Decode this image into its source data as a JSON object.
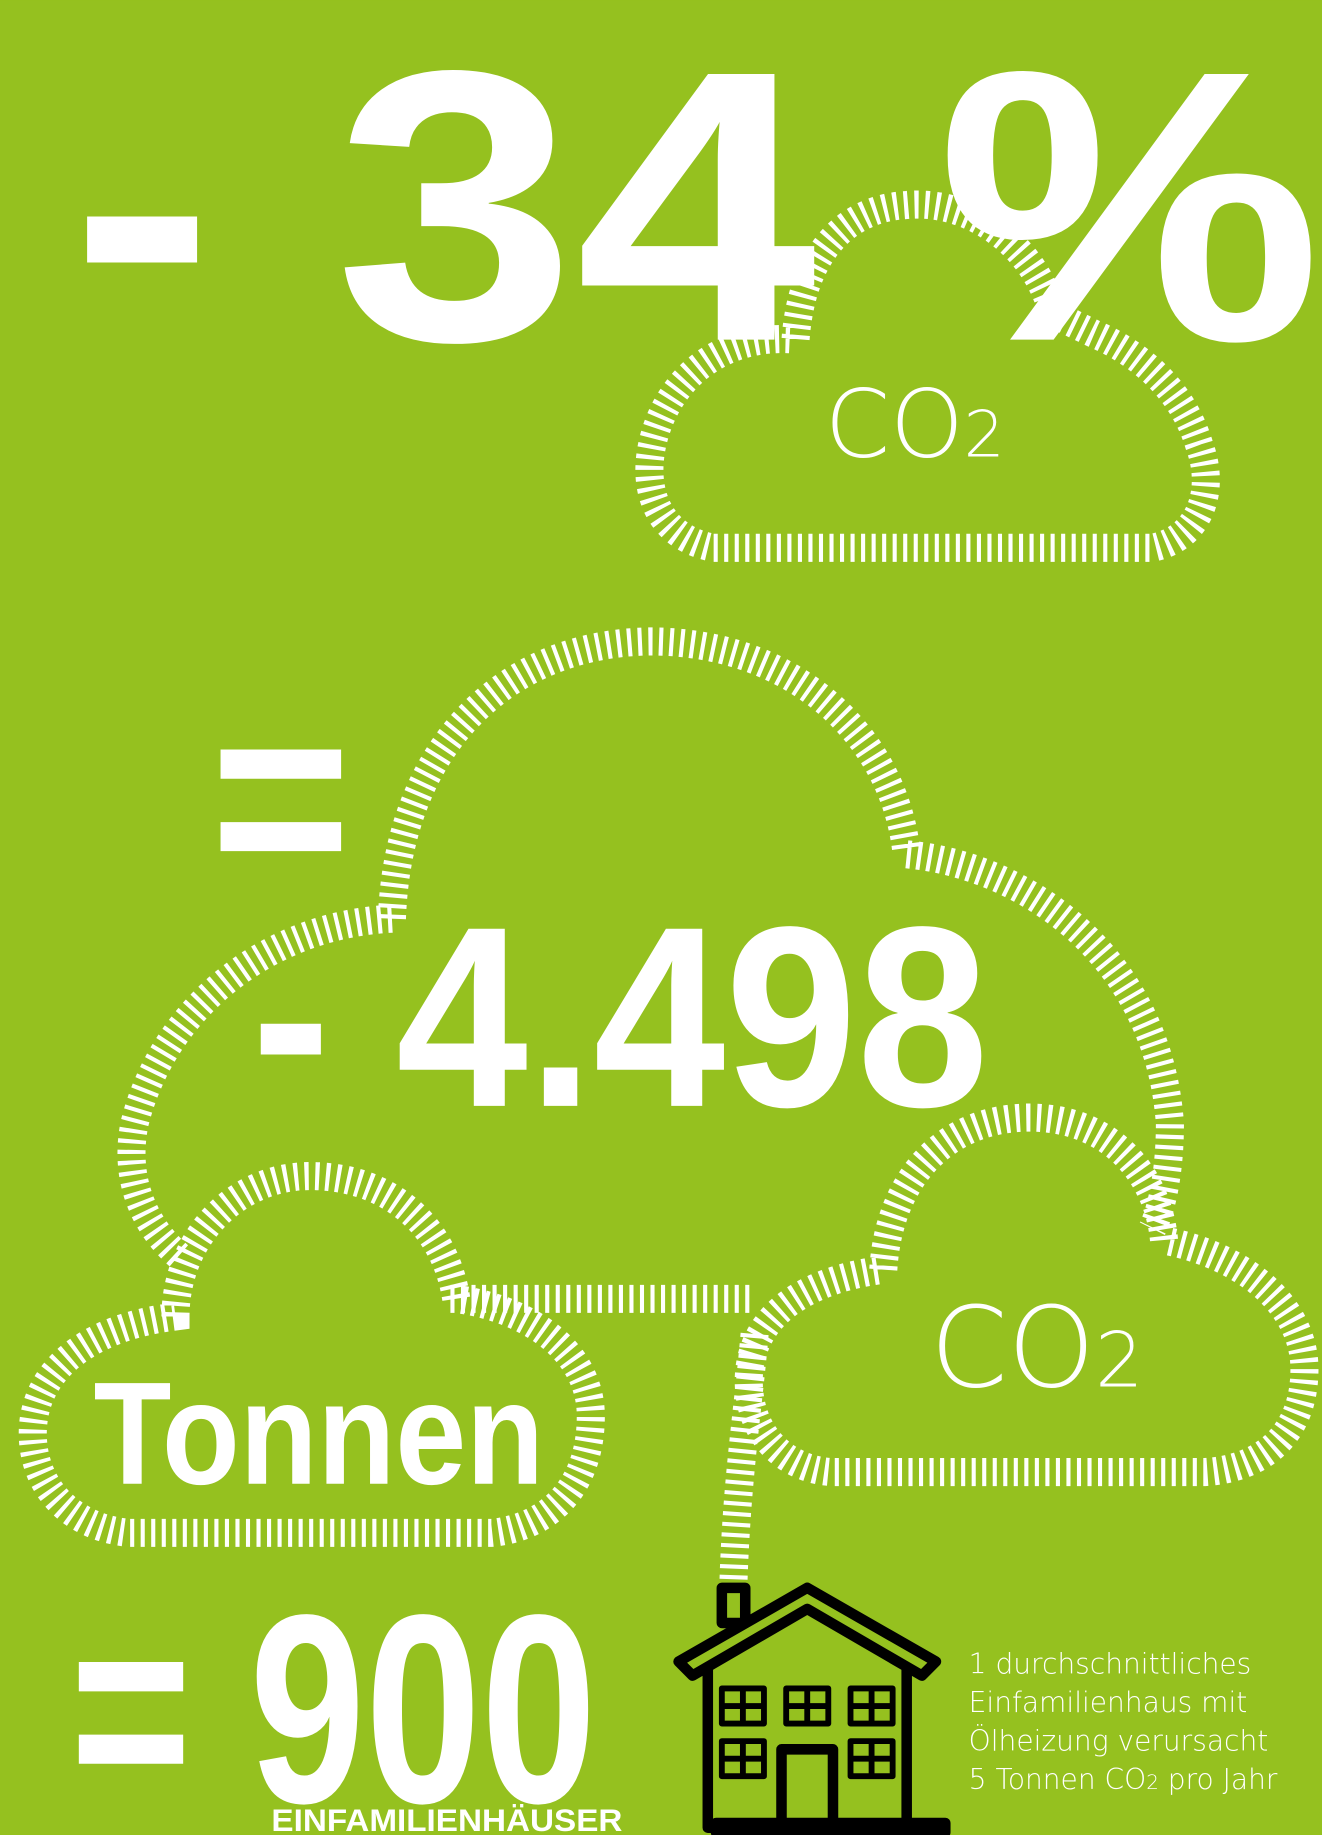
{
  "headline": "- 34 %",
  "cloud_top_label": {
    "main": "CO",
    "sub": "2"
  },
  "equals": "=",
  "amount": "- 4.498",
  "cloud_right_label": {
    "main": "CO",
    "sub": "2"
  },
  "unit": "Tonnen",
  "result": {
    "number": "= 900",
    "caption": "EINFAMILIENHÄUSER"
  },
  "note": {
    "lines": [
      "1 durchschnittliches",
      "Einfamilienhaus mit",
      "Ölheizung verursacht"
    ],
    "last_line": {
      "before": "5 Tonnen CO",
      "sub": "2",
      "after": " pro Jahr"
    }
  }
}
